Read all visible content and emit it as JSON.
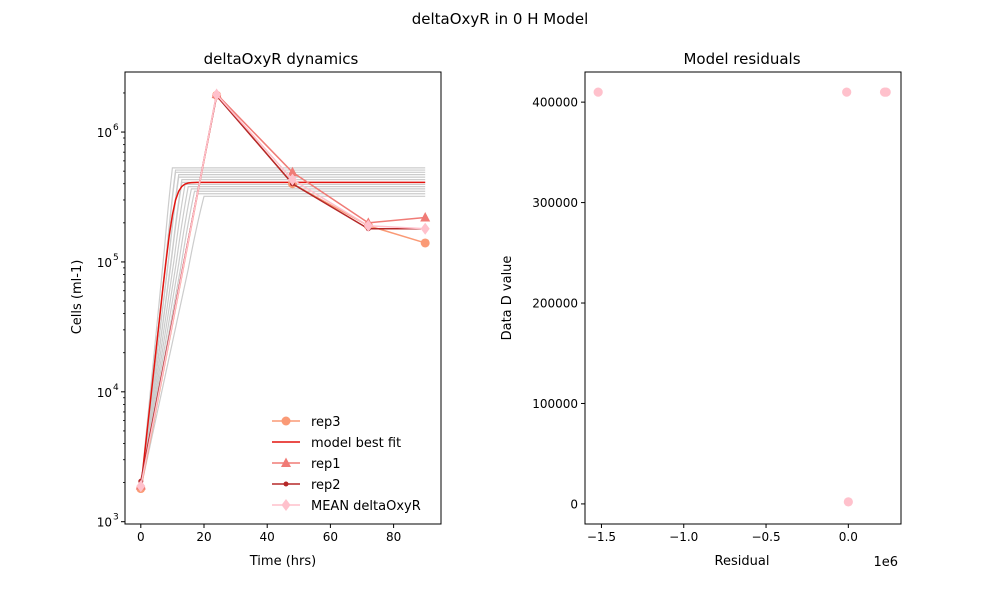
{
  "figure_title": "deltaOxyR in 0 H Model",
  "chart_data": [
    {
      "type": "line",
      "title": "deltaOxyR dynamics",
      "xlabel": "Time (hrs)",
      "ylabel": "Cells (ml-1)",
      "xlim": [
        -5,
        95
      ],
      "ylim": [
        960,
        2900000
      ],
      "yscale": "log",
      "x_ticks": [
        0,
        20,
        40,
        60,
        80
      ],
      "x_tick_labels": [
        "0",
        "20",
        "40",
        "60",
        "80"
      ],
      "y_ticks": [
        1000,
        10000,
        100000,
        1000000
      ],
      "y_tick_labels": [
        {
          "base": "10",
          "exp": "3"
        },
        {
          "base": "10",
          "exp": "4"
        },
        {
          "base": "10",
          "exp": "5"
        },
        {
          "base": "10",
          "exp": "6"
        }
      ],
      "legend_position": "lower-right",
      "model_ensemble": {
        "color": "#cccccc",
        "y0": 1800,
        "plateaus": [
          320000,
          335000,
          350000,
          365000,
          380000,
          395000,
          410000,
          430000,
          450000,
          470000,
          490000,
          510000,
          530000
        ],
        "plateau_times": [
          20,
          18,
          17,
          16,
          15,
          14,
          13,
          13,
          12,
          12,
          11,
          11,
          10
        ]
      },
      "series": [
        {
          "name": "rep3",
          "color": "#fa9a76",
          "marker": "circle",
          "x": [
            0,
            24,
            48,
            72,
            90
          ],
          "y": [
            1800,
            1920000,
            400000,
            190000,
            140000
          ]
        },
        {
          "name": " model best fit",
          "color": "#e3140f",
          "marker": "none",
          "x": [
            0,
            1,
            2,
            3,
            4,
            5,
            6,
            7,
            8,
            9,
            10,
            11,
            12,
            13,
            14,
            15,
            16,
            17,
            18,
            20,
            30,
            40,
            50,
            60,
            70,
            80,
            90
          ],
          "y": [
            1800,
            3000,
            5000,
            8300,
            13800,
            22900,
            38000,
            63000,
            102000,
            160000,
            230000,
            300000,
            350000,
            382000,
            398000,
            405000,
            408000,
            409000,
            410000,
            410000,
            410000,
            410000,
            410000,
            410000,
            410000,
            410000,
            410000
          ]
        },
        {
          "name": "rep1",
          "color": "#f07b76",
          "marker": "triangle",
          "x": [
            0,
            24,
            48,
            72,
            90
          ],
          "y": [
            1900,
            1960000,
            490000,
            200000,
            220000
          ]
        },
        {
          "name": "rep2",
          "color": "#b52828",
          "marker": "dot",
          "x": [
            0,
            24,
            48,
            72,
            90
          ],
          "y": [
            2050,
            1900000,
            400000,
            180000,
            180000
          ]
        },
        {
          "name": "MEAN deltaOxyR",
          "color": "#ffc1cc",
          "marker": "diamond",
          "x": [
            0,
            24,
            48,
            72,
            90
          ],
          "y": [
            1880,
            1940000,
            430000,
            190000,
            180000
          ]
        }
      ]
    },
    {
      "type": "scatter",
      "title": "Model residuals",
      "xlabel": "Residual",
      "ylabel": "Data D value",
      "axis_offset_label": "1e6",
      "xlim": [
        -1.6,
        0.32
      ],
      "ylim": [
        -20000,
        430000
      ],
      "x_ticks": [
        -1.5,
        -1.0,
        -0.5,
        0.0
      ],
      "x_tick_labels": [
        "−1.5",
        "−1.0",
        "−0.5",
        "0.0"
      ],
      "y_ticks": [
        0,
        100000,
        200000,
        300000,
        400000
      ],
      "y_tick_labels": [
        "0",
        "100000",
        "200000",
        "300000",
        "400000"
      ],
      "points": {
        "color": "#ffc1cc",
        "x": [
          -1.52,
          -0.01,
          0.22,
          0.23,
          0.0
        ],
        "y": [
          410000,
          410000,
          410000,
          410000,
          2000
        ]
      }
    }
  ]
}
